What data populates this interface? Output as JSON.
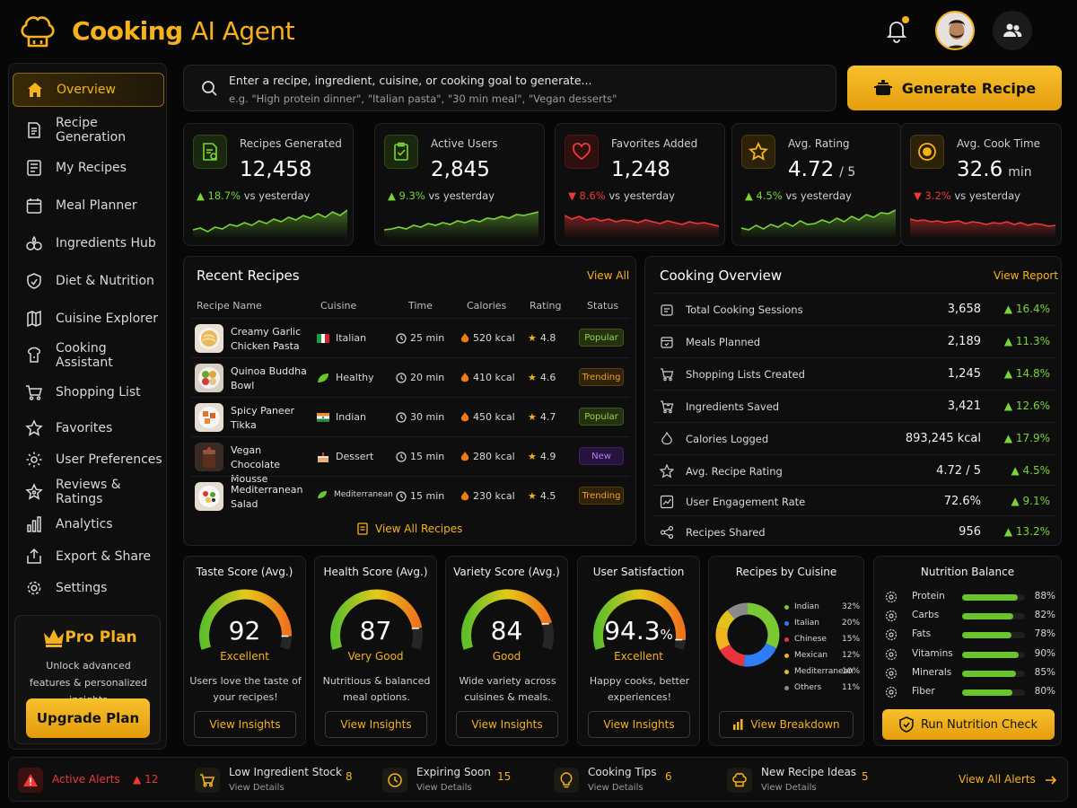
{
  "header": {
    "title_part1": "Cooking",
    "title_part2": "AI Agent",
    "icons": [
      "chef-hat-icon",
      "bell-icon",
      "avatar",
      "people-icon"
    ]
  },
  "sidebar": {
    "items": [
      {
        "label": "Overview",
        "icon": "home-icon",
        "active": true
      },
      {
        "label": "Recipe Generation",
        "icon": "document-icon"
      },
      {
        "label": "My Recipes",
        "icon": "recipe-list-icon"
      },
      {
        "label": "Meal Planner",
        "icon": "calendar-icon"
      },
      {
        "label": "Ingredients Hub",
        "icon": "ingredients-icon"
      },
      {
        "label": "Diet & Nutrition",
        "icon": "shield-leaf-icon"
      },
      {
        "label": "Cuisine Explorer",
        "icon": "map-icon"
      },
      {
        "label": "Cooking Assistant",
        "icon": "assistant-icon"
      },
      {
        "label": "Shopping List",
        "icon": "cart-icon"
      },
      {
        "label": "Favorites",
        "icon": "star-icon"
      },
      {
        "label": "User Preferences",
        "icon": "gear-icon"
      },
      {
        "label": "Reviews & Ratings",
        "icon": "star-badge-icon"
      },
      {
        "label": "Analytics",
        "icon": "bar-chart-icon"
      },
      {
        "label": "Export & Share",
        "icon": "export-icon"
      },
      {
        "label": "Settings",
        "icon": "settings-icon"
      }
    ],
    "pro": {
      "title": "Pro Plan",
      "desc": "Unlock advanced features & personalized insights",
      "button": "Upgrade Plan"
    }
  },
  "search": {
    "placeholder": "Enter a recipe, ingredient, cuisine, or cooking goal to generate...",
    "examples": "e.g. \"High protein dinner\", \"Italian pasta\", \"30 min meal\", \"Vegan desserts\"",
    "button": "Generate Recipe"
  },
  "stats": [
    {
      "label": "Recipes Generated",
      "value": "12,458",
      "unit": "",
      "change": "18.7%",
      "suffix": "vs yesterday",
      "trend": "up",
      "icon": "recipe-icon"
    },
    {
      "label": "Active Users",
      "value": "2,845",
      "unit": "",
      "change": "9.3%",
      "suffix": "vs yesterday",
      "trend": "up",
      "icon": "clipboard-check-icon"
    },
    {
      "label": "Favorites Added",
      "value": "1,248",
      "unit": "",
      "change": "8.6%",
      "suffix": "vs yesterday",
      "trend": "down",
      "icon": "heart-icon"
    },
    {
      "label": "Avg. Rating",
      "value": "4.72",
      "unit": "/ 5",
      "change": "4.5%",
      "suffix": "vs yesterday",
      "trend": "up",
      "icon": "star-icon"
    },
    {
      "label": "Avg. Cook Time",
      "value": "32.6",
      "unit": "min",
      "change": "3.2%",
      "suffix": "vs yesterday",
      "trend": "down",
      "icon": "timer-icon"
    }
  ],
  "recent": {
    "title": "Recent Recipes",
    "view_all": "View All",
    "headers": [
      "Recipe Name",
      "Cuisine",
      "Time",
      "Calories",
      "Rating",
      "Status"
    ],
    "rows": [
      {
        "name": "Creamy Garlic Chicken Pasta",
        "cuisine": "Italian",
        "flag": "italy",
        "time": "25 min",
        "calories": "520 kcal",
        "rating": "4.8",
        "status": "Popular"
      },
      {
        "name": "Quinoa Buddha Bowl",
        "cuisine": "Healthy",
        "flag": "leaf",
        "time": "20 min",
        "calories": "410 kcal",
        "rating": "4.6",
        "status": "Trending"
      },
      {
        "name": "Spicy Paneer Tikka",
        "cuisine": "Indian",
        "flag": "india",
        "time": "30 min",
        "calories": "450 kcal",
        "rating": "4.7",
        "status": "Popular"
      },
      {
        "name": "Vegan Chocolate Mousse",
        "cuisine": "Dessert",
        "flag": "cake",
        "time": "15 min",
        "calories": "280 kcal",
        "rating": "4.9",
        "status": "New"
      },
      {
        "name": "Mediterranean Salad",
        "cuisine": "Mediterranean",
        "flag": "leaf",
        "time": "15 min",
        "calories": "230 kcal",
        "rating": "4.5",
        "status": "Trending"
      }
    ],
    "footer": "View All Recipes"
  },
  "overview": {
    "title": "Cooking Overview",
    "link": "View Report",
    "rows": [
      {
        "label": "Total Cooking Sessions",
        "value": "3,658",
        "change": "16.4%",
        "icon": "pot-icon"
      },
      {
        "label": "Meals Planned",
        "value": "2,189",
        "change": "11.3%",
        "icon": "calendar-icon"
      },
      {
        "label": "Shopping Lists Created",
        "value": "1,245",
        "change": "14.8%",
        "icon": "cart-icon"
      },
      {
        "label": "Ingredients Saved",
        "value": "3,421",
        "change": "12.6%",
        "icon": "basket-icon"
      },
      {
        "label": "Calories Logged",
        "value": "893,245 kcal",
        "change": "17.9%",
        "icon": "flame-icon"
      },
      {
        "label": "Avg. Recipe Rating",
        "value": "4.72 / 5",
        "change": "4.5%",
        "icon": "star-icon"
      },
      {
        "label": "User Engagement Rate",
        "value": "72.6%",
        "change": "9.1%",
        "icon": "chart-icon"
      },
      {
        "label": "Recipes Shared",
        "value": "956",
        "change": "13.2%",
        "icon": "share-icon"
      }
    ]
  },
  "gauges": [
    {
      "title": "Taste Score (Avg.)",
      "value": "92",
      "unit": "",
      "quality": "Excellent",
      "desc": "Users love the taste of your recipes!",
      "button": "View Insights",
      "fraction": 0.92
    },
    {
      "title": "Health Score (Avg.)",
      "value": "87",
      "unit": "",
      "quality": "Very Good",
      "desc": "Nutritious & balanced meal options.",
      "button": "View Insights",
      "fraction": 0.87
    },
    {
      "title": "Variety Score (Avg.)",
      "value": "84",
      "unit": "",
      "quality": "Good",
      "desc": "Wide variety across cuisines & meals.",
      "button": "View Insights",
      "fraction": 0.84
    },
    {
      "title": "User Satisfaction",
      "value": "94.3",
      "unit": "%",
      "quality": "Excellent",
      "desc": "Happy cooks, better experiences!",
      "button": "View Insights",
      "fraction": 0.943
    }
  ],
  "cuisine": {
    "title": "Recipes by Cuisine",
    "button": "View Breakdown",
    "items": [
      {
        "label": "Indian",
        "pct": "32%",
        "value": 32,
        "color": "#79c934"
      },
      {
        "label": "Italian",
        "pct": "20%",
        "value": 20,
        "color": "#2f7df6"
      },
      {
        "label": "Chinese",
        "pct": "15%",
        "value": 15,
        "color": "#e8343a"
      },
      {
        "label": "Mexican",
        "pct": "12%",
        "value": 12,
        "color": "#f2b21b"
      },
      {
        "label": "Mediterranean",
        "pct": "10%",
        "value": 10,
        "color": "#e3c31a"
      },
      {
        "label": "Others",
        "pct": "11%",
        "value": 11,
        "color": "#8a8a8a"
      }
    ]
  },
  "nutrition": {
    "title": "Nutrition Balance",
    "button": "Run Nutrition Check",
    "items": [
      {
        "label": "Protein",
        "pct": "88%",
        "value": 88
      },
      {
        "label": "Carbs",
        "pct": "82%",
        "value": 82
      },
      {
        "label": "Fats",
        "pct": "78%",
        "value": 78
      },
      {
        "label": "Vitamins",
        "pct": "90%",
        "value": 90
      },
      {
        "label": "Minerals",
        "pct": "85%",
        "value": 85
      },
      {
        "label": "Fiber",
        "pct": "80%",
        "value": 80
      }
    ]
  },
  "alerts": {
    "label": "Active Alerts",
    "count": "12",
    "items": [
      {
        "title": "Low Ingredient Stock",
        "sub": "View Details",
        "count": "8",
        "icon": "cart-icon"
      },
      {
        "title": "Expiring Soon",
        "sub": "View Details",
        "count": "15",
        "icon": "clock-icon"
      },
      {
        "title": "Cooking Tips",
        "sub": "View Details",
        "count": "6",
        "icon": "bulb-icon"
      },
      {
        "title": "New Recipe Ideas",
        "sub": "View Details",
        "count": "5",
        "icon": "chef-hat-icon"
      }
    ],
    "view_all": "View All Alerts"
  },
  "colors": {
    "accent": "#f5b21b",
    "up": "#79d437",
    "down": "#ef3737"
  }
}
